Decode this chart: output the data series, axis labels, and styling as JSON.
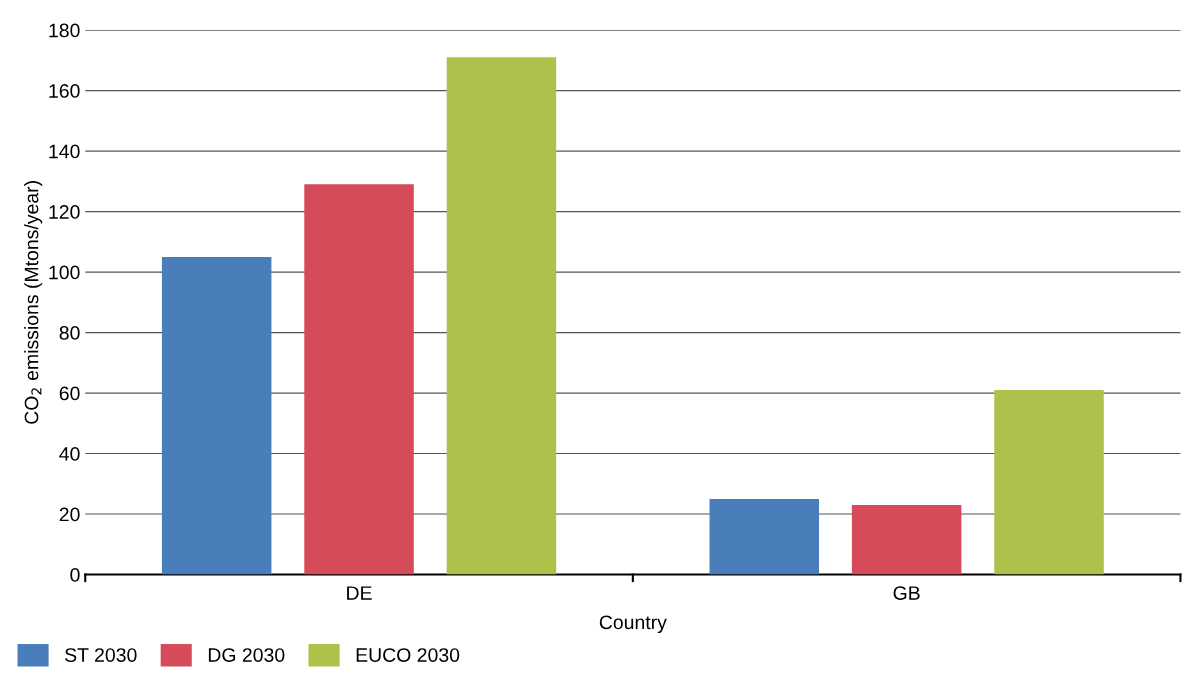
{
  "chart_data": {
    "type": "bar",
    "xlabel": "Country",
    "ylabel": "CO$_{2}$ emissions (Mtons/year)",
    "categories": [
      "DE",
      "GB"
    ],
    "series": [
      {
        "name": "ST 2030",
        "color": "#4a7ebb",
        "values": [
          105,
          25
        ]
      },
      {
        "name": "DG 2030",
        "color": "#d64b5a",
        "values": [
          129,
          23
        ]
      },
      {
        "name": "EUCO 2030",
        "color": "#adc24a",
        "values": [
          171,
          61
        ]
      }
    ],
    "ylim": [
      0,
      180
    ],
    "yticks": [
      0,
      20,
      40,
      60,
      80,
      100,
      120,
      140,
      160,
      180
    ],
    "grid": "y",
    "legend": "bottom left"
  }
}
